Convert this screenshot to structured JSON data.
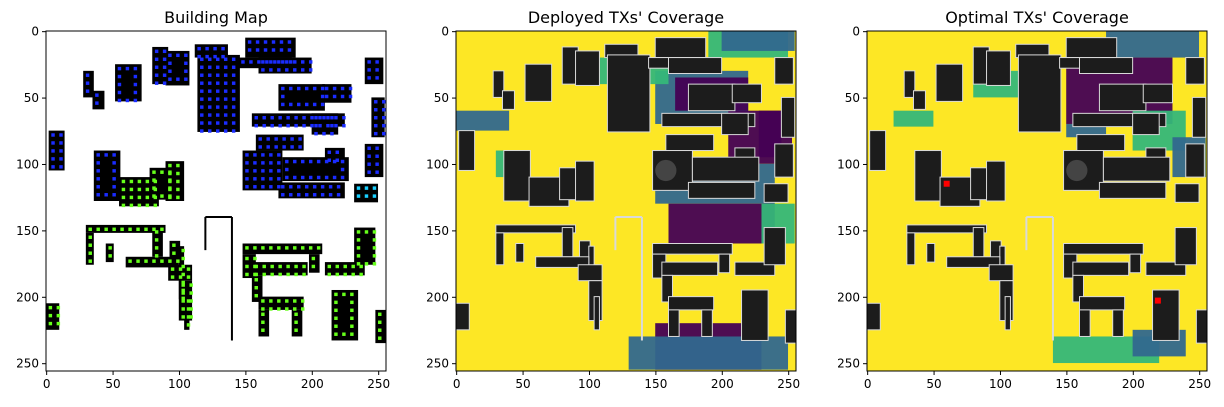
{
  "chart_data": [
    {
      "type": "heatmap",
      "title": "Building Map",
      "xlim": [
        0,
        255
      ],
      "ylim": [
        255,
        0
      ],
      "x_ticks": [
        "0",
        "50",
        "100",
        "150",
        "200",
        "250"
      ],
      "y_ticks": [
        "0",
        "50",
        "100",
        "150",
        "200",
        "250"
      ],
      "legend": "none",
      "grid": false,
      "colors": {
        "background": "#ffffff",
        "building": "#000000",
        "marker_blue": "#1a2cff",
        "marker_green": "#66ff1a",
        "marker_cyan": "#1ad0ff"
      }
    },
    {
      "type": "heatmap",
      "title": "Deployed TXs' Coverage",
      "xlim": [
        0,
        255
      ],
      "ylim": [
        255,
        0
      ],
      "x_ticks": [
        "0",
        "50",
        "100",
        "150",
        "200",
        "250"
      ],
      "y_ticks": [
        "0",
        "50",
        "100",
        "150",
        "200",
        "250"
      ],
      "legend": "none",
      "grid": false,
      "colors": {
        "full": "#fde725",
        "mid": "#35b779",
        "low": "#31688e",
        "none": "#440154",
        "building": "#1c1c1c",
        "edge": "#d9d9d9"
      }
    },
    {
      "type": "heatmap",
      "title": "Optimal TXs' Coverage",
      "xlim": [
        0,
        255
      ],
      "ylim": [
        255,
        0
      ],
      "x_ticks": [
        "0",
        "50",
        "100",
        "150",
        "200",
        "250"
      ],
      "y_ticks": [
        "0",
        "50",
        "100",
        "150",
        "200",
        "250"
      ],
      "legend": "none",
      "grid": false,
      "tx_points": [
        {
          "x": 60,
          "y": 115
        },
        {
          "x": 219,
          "y": 203
        }
      ],
      "colors": {
        "full": "#fde725",
        "mid": "#35b779",
        "low": "#31688e",
        "none": "#440154",
        "building": "#1c1c1c",
        "edge": "#d9d9d9",
        "tx": "#ff0000"
      }
    }
  ]
}
